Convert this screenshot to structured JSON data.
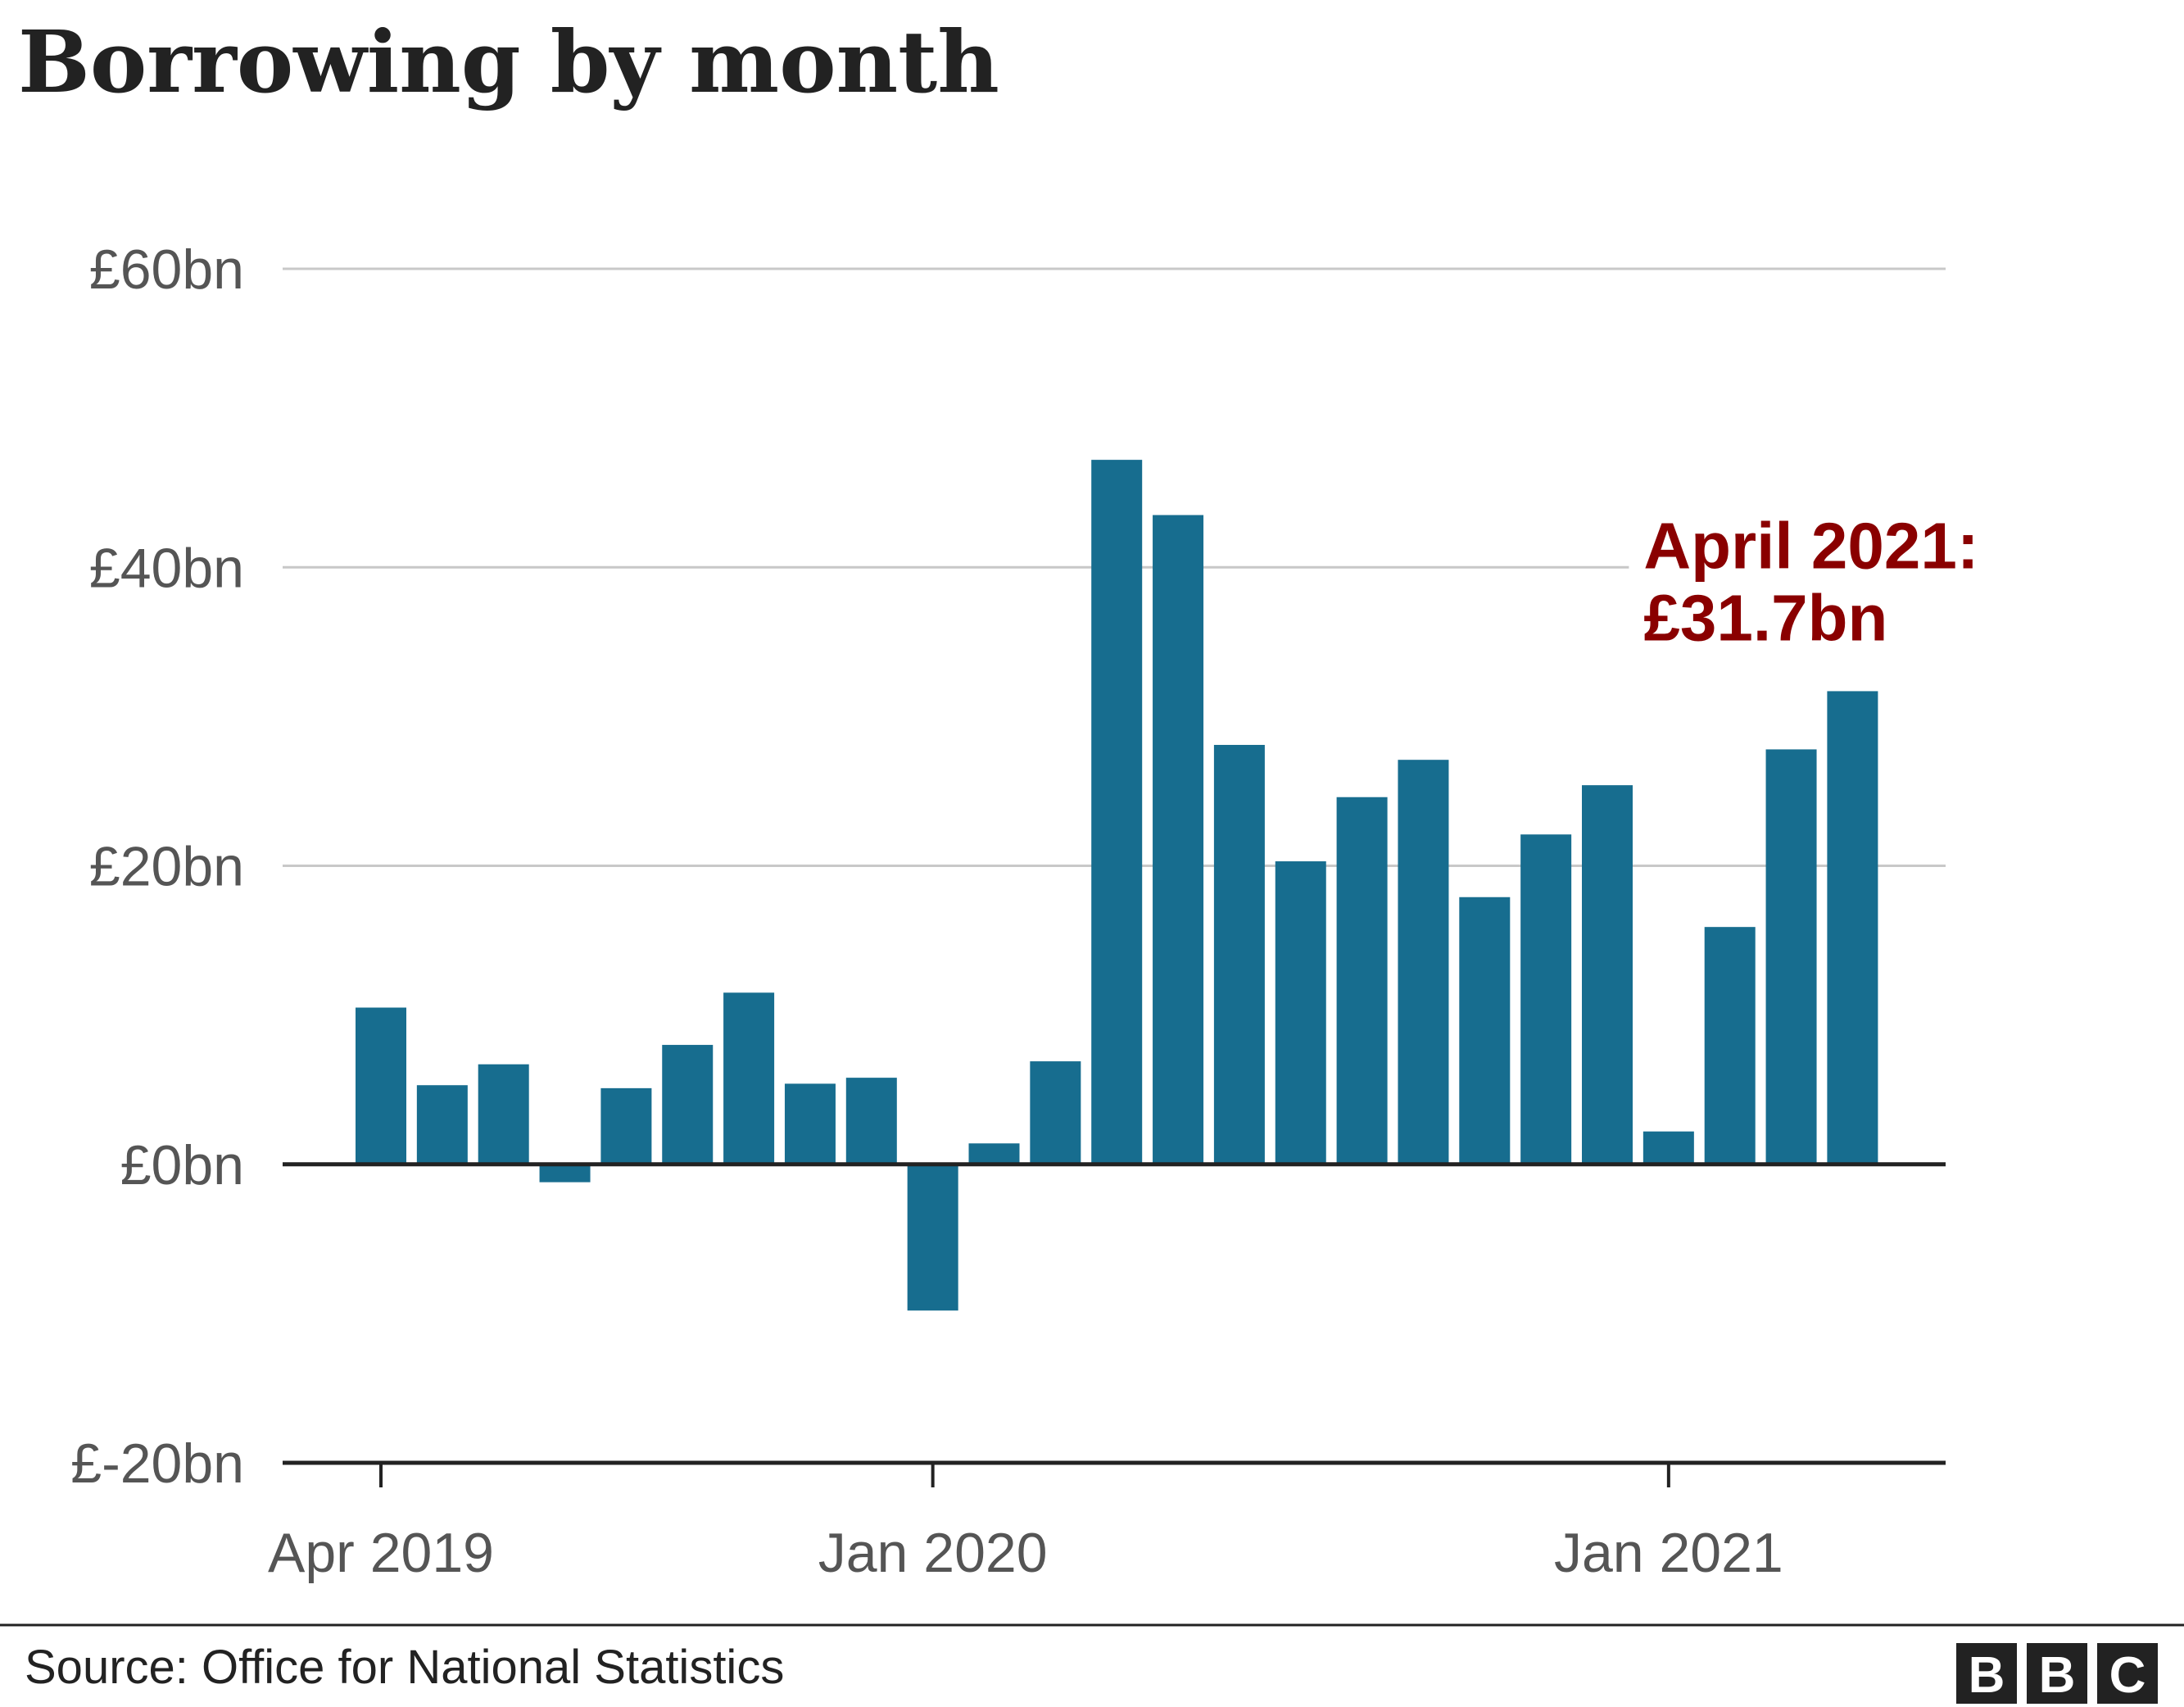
{
  "title": "Borrowing by month",
  "chart_data": {
    "type": "bar",
    "title": "Borrowing by month",
    "xlabel": "",
    "ylabel": "",
    "ylim": [
      -20,
      60
    ],
    "y_ticks": [
      60,
      40,
      20,
      0,
      -20
    ],
    "y_tick_labels": [
      "£60bn",
      "£40bn",
      "£20bn",
      "£0bn",
      "£-20bn"
    ],
    "x_tick_labels": [
      "Apr 2019",
      "Jan 2020",
      "Jan 2021"
    ],
    "x_tick_category_index": [
      0,
      9,
      21
    ],
    "categories": [
      "Apr 2019",
      "May 2019",
      "Jun 2019",
      "Jul 2019",
      "Aug 2019",
      "Sep 2019",
      "Oct 2019",
      "Nov 2019",
      "Dec 2019",
      "Jan 2020",
      "Feb 2020",
      "Mar 2020",
      "Apr 2020",
      "May 2020",
      "Jun 2020",
      "Jul 2020",
      "Aug 2020",
      "Sep 2020",
      "Oct 2020",
      "Nov 2020",
      "Dec 2020",
      "Jan 2021",
      "Feb 2021",
      "Mar 2021",
      "Apr 2021"
    ],
    "values": [
      10.5,
      5.3,
      6.7,
      -1.2,
      5.1,
      8.0,
      11.5,
      5.4,
      5.8,
      -9.8,
      1.4,
      6.9,
      47.2,
      43.5,
      28.1,
      20.3,
      24.6,
      27.1,
      17.9,
      22.1,
      25.4,
      2.2,
      15.9,
      27.8,
      31.7
    ],
    "bar_color": "#176d8f",
    "grid": true,
    "annotation": {
      "lines": [
        "April 2021:",
        "£31.7bn"
      ],
      "color": "#8a0000",
      "category_index": 24
    }
  },
  "footer": {
    "source": "Source: Office for National Statistics",
    "logo_letters": [
      "B",
      "B",
      "C"
    ]
  }
}
